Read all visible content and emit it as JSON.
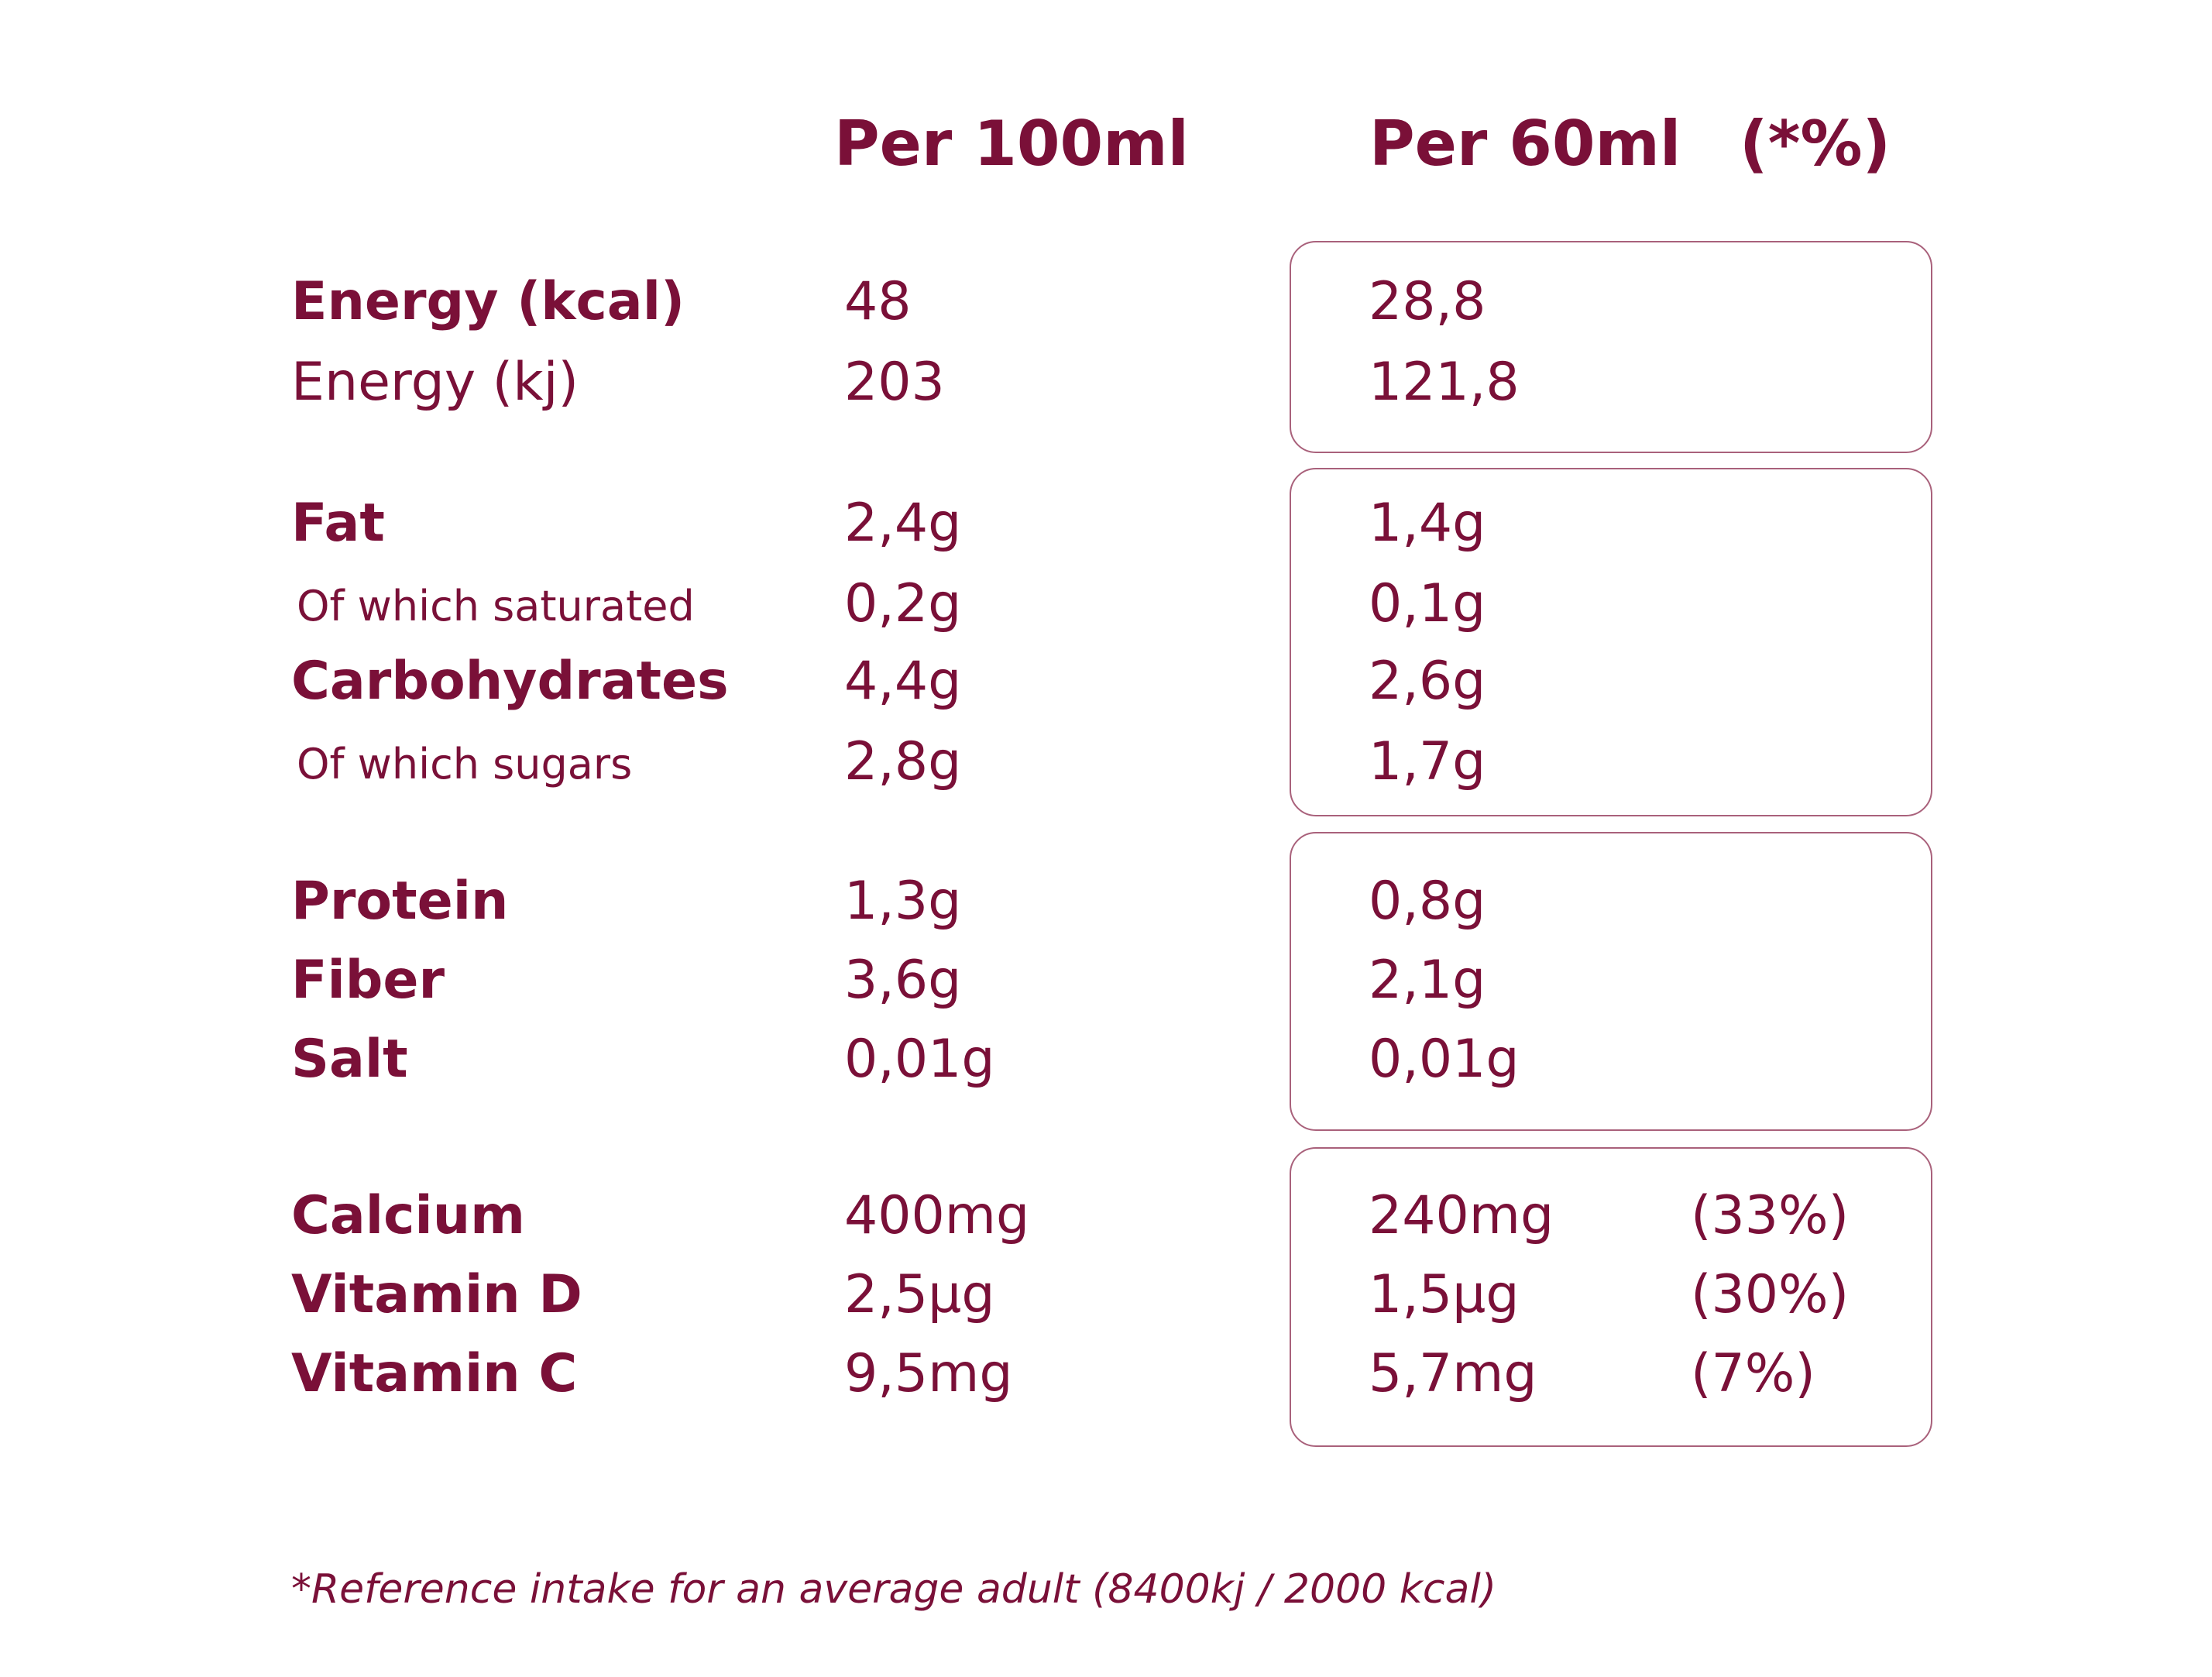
{
  "headers": {
    "per100": "Per 100ml",
    "per60": "Per 60ml",
    "ri": "(*%)"
  },
  "rows": [
    {
      "label": "Energy (kcal)",
      "per100": "48",
      "per60": "28,8"
    },
    {
      "label": "Energy (kj)",
      "per100": "203",
      "per60": "121,8"
    },
    {
      "label": "Fat",
      "per100": "2,4g",
      "per60": "1,4g"
    },
    {
      "label": "Of which saturated",
      "per100": "0,2g",
      "per60": "0,1g"
    },
    {
      "label": "Carbohydrates",
      "per100": "4,4g",
      "per60": "2,6g"
    },
    {
      "label": "Of which sugars",
      "per100": "2,8g",
      "per60": "1,7g"
    },
    {
      "label": "Protein",
      "per100": "1,3g",
      "per60": "0,8g"
    },
    {
      "label": "Fiber",
      "per100": "3,6g",
      "per60": "2,1g"
    },
    {
      "label": "Salt",
      "per100": "0,01g",
      "per60": "0,01g"
    },
    {
      "label": "Calcium",
      "per100": "400mg",
      "per60": "240mg",
      "ri": "(33%)"
    },
    {
      "label": "Vitamin D",
      "per100": "2,5µg",
      "per60": "1,5µg",
      "ri": "(30%)"
    },
    {
      "label": "Vitamin C",
      "per100": "9,5mg",
      "per60": "5,7mg",
      "ri": "(7%)"
    }
  ],
  "footnote": "*Reference intake for an average adult (8400kj / 2000 kcal)",
  "colors": {
    "text": "#7a1038",
    "box_border": "#a9617b",
    "background": "#ffffff"
  }
}
